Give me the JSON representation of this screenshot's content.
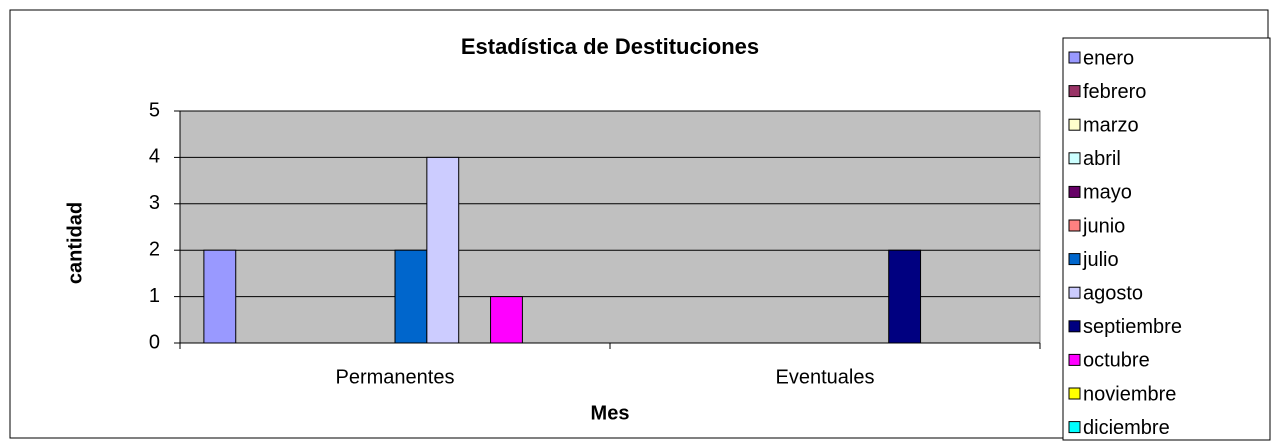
{
  "chart_data": {
    "type": "bar",
    "title": "Estadística de Destituciones",
    "x_label": "Mes",
    "y_label": "cantidad",
    "categories": [
      "Permanentes",
      "Eventuales"
    ],
    "series": [
      {
        "name": "enero",
        "color": "#9999ff",
        "values": [
          2,
          0
        ]
      },
      {
        "name": "febrero",
        "color": "#993366",
        "values": [
          0,
          0
        ]
      },
      {
        "name": "marzo",
        "color": "#ffffcc",
        "values": [
          0,
          0
        ]
      },
      {
        "name": "abril",
        "color": "#ccffff",
        "values": [
          0,
          0
        ]
      },
      {
        "name": "mayo",
        "color": "#660066",
        "values": [
          0,
          0
        ]
      },
      {
        "name": "junio",
        "color": "#ff8080",
        "values": [
          0,
          0
        ]
      },
      {
        "name": "julio",
        "color": "#0066cc",
        "values": [
          2,
          0
        ]
      },
      {
        "name": "agosto",
        "color": "#ccccff",
        "values": [
          4,
          0
        ]
      },
      {
        "name": "septiembre",
        "color": "#000080",
        "values": [
          0,
          2
        ]
      },
      {
        "name": "octubre",
        "color": "#ff00ff",
        "values": [
          1,
          0
        ]
      },
      {
        "name": "noviembre",
        "color": "#ffff00",
        "values": [
          0,
          0
        ]
      },
      {
        "name": "diciembre",
        "color": "#00ffff",
        "values": [
          0,
          0
        ]
      }
    ],
    "ylim": [
      0,
      5
    ],
    "yticks": [
      0,
      1,
      2,
      3,
      4,
      5
    ],
    "grid": true,
    "legend": "right",
    "plot_background": "#c0c0c0"
  }
}
